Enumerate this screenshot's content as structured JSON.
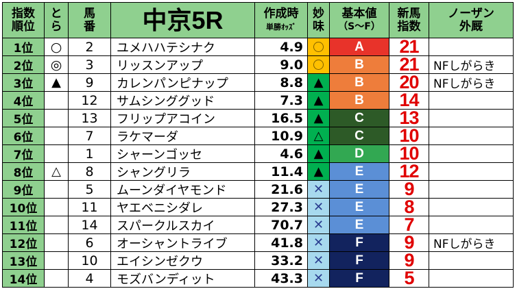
{
  "header": {
    "rank_label": [
      "指数",
      "順位"
    ],
    "tora_label": [
      "と",
      "ら"
    ],
    "umaban_label": [
      "馬",
      "番"
    ],
    "race_title": "中京5R",
    "odds_label": "作成時",
    "odds_sub": "単勝ｵｯｽﾞ",
    "myomi_label": [
      "妙",
      "味"
    ],
    "kihon_label": "基本値",
    "kihon_sub": "（S～F）",
    "shinba_label": [
      "新馬",
      "指数"
    ],
    "nosa_label": [
      "ノーザン",
      "外厩"
    ]
  },
  "colors": {
    "header_bg": "#8fd08f",
    "A": "#e8332a",
    "B": "#ee7d3b",
    "C": "#2d5a27",
    "D": "#32a852",
    "E": "#5b8fd6",
    "F": "#12235e",
    "myomi_yellow": "#ffc000",
    "myomi_green": "#00b050",
    "myomi_blue": "#a7d9ee",
    "index_red": "#e00000"
  },
  "rows": [
    {
      "rank": "1位",
      "tora": "circle",
      "umaban": "2",
      "name": "ユメハハテシナク",
      "odds": "4.9",
      "myomi": "circle",
      "grade": "A",
      "index": "21",
      "nf": ""
    },
    {
      "rank": "2位",
      "tora": "double-circle",
      "umaban": "3",
      "name": "リッスンアップ",
      "odds": "9.0",
      "myomi": "circle",
      "grade": "B",
      "index": "21",
      "nf": "NFしがらき"
    },
    {
      "rank": "3位",
      "tora": "black-triangle",
      "umaban": "9",
      "name": "カレンパンピナップ",
      "odds": "8.8",
      "myomi": "black-triangle",
      "grade": "B",
      "index": "20",
      "nf": "NFしがらき"
    },
    {
      "rank": "4位",
      "tora": "",
      "umaban": "12",
      "name": "サムシンググッド",
      "odds": "7.3",
      "myomi": "black-triangle",
      "grade": "B",
      "index": "14",
      "nf": ""
    },
    {
      "rank": "5位",
      "tora": "",
      "umaban": "13",
      "name": "フリップアコイン",
      "odds": "16.5",
      "myomi": "black-triangle",
      "grade": "C",
      "index": "13",
      "nf": ""
    },
    {
      "rank": "6位",
      "tora": "",
      "umaban": "7",
      "name": "ラケマーダ",
      "odds": "10.9",
      "myomi": "white-triangle",
      "grade": "C",
      "index": "10",
      "nf": ""
    },
    {
      "rank": "7位",
      "tora": "",
      "umaban": "1",
      "name": "シャーンゴッセ",
      "odds": "4.6",
      "myomi": "black-triangle",
      "grade": "D",
      "index": "10",
      "nf": ""
    },
    {
      "rank": "8位",
      "tora": "white-triangle",
      "umaban": "8",
      "name": "シャングリラ",
      "odds": "11.4",
      "myomi": "black-triangle",
      "grade": "E",
      "index": "12",
      "nf": ""
    },
    {
      "rank": "9位",
      "tora": "",
      "umaban": "5",
      "name": "ムーンダイヤモンド",
      "odds": "21.6",
      "myomi": "cross",
      "grade": "E",
      "index": "9",
      "nf": ""
    },
    {
      "rank": "10位",
      "tora": "",
      "umaban": "11",
      "name": "ヤエベニシダレ",
      "odds": "27.3",
      "myomi": "cross",
      "grade": "E",
      "index": "8",
      "nf": ""
    },
    {
      "rank": "11位",
      "tora": "",
      "umaban": "14",
      "name": "スパークルスカイ",
      "odds": "70.7",
      "myomi": "cross",
      "grade": "E",
      "index": "7",
      "nf": ""
    },
    {
      "rank": "12位",
      "tora": "",
      "umaban": "6",
      "name": "オーシャントライブ",
      "odds": "41.8",
      "myomi": "cross",
      "grade": "F",
      "index": "9",
      "nf": "NFしがらき"
    },
    {
      "rank": "13位",
      "tora": "",
      "umaban": "10",
      "name": "エイシンゼクウ",
      "odds": "33.2",
      "myomi": "cross",
      "grade": "F",
      "index": "9",
      "nf": ""
    },
    {
      "rank": "14位",
      "tora": "",
      "umaban": "4",
      "name": "モズバンディット",
      "odds": "43.3",
      "myomi": "cross",
      "grade": "F",
      "index": "5",
      "nf": ""
    }
  ]
}
